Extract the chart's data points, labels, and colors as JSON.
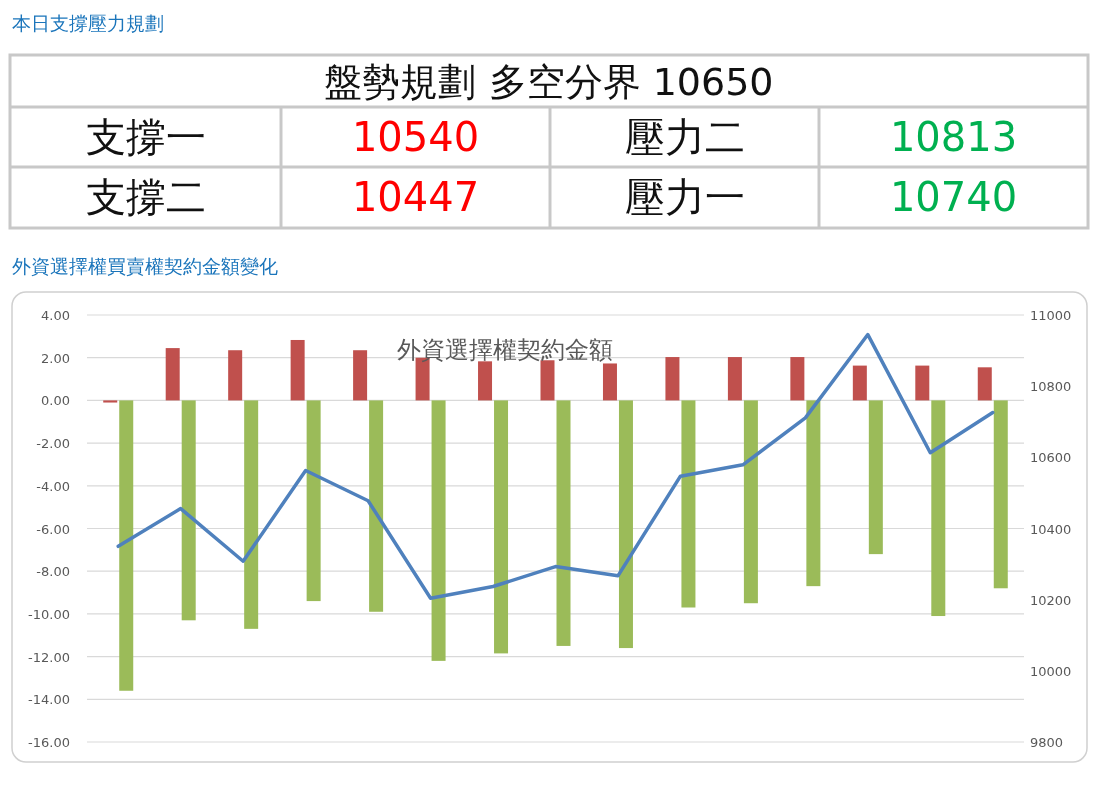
{
  "chart_data": [
    {
      "type": "other",
      "title": "本日支撐壓力規劃",
      "annotations": [
        "盤勢規劃 多空分界 10650",
        "支撐一",
        "10540",
        "壓力二",
        "10813",
        "支撐二",
        "10447",
        "壓力一",
        "10740"
      ]
    },
    {
      "type": "bar",
      "title": "外資選擇權買賣權契約金額變化",
      "subtitle": "外資選擇權契約金額",
      "categories": [
        null,
        null,
        null,
        null,
        null,
        null,
        null,
        null,
        null,
        null,
        null,
        null,
        null,
        null,
        null
      ],
      "series": [
        {
          "color": "#c0504d",
          "values": [
            -0.1,
            2.45,
            2.35,
            2.83,
            2.35,
            2.0,
            1.83,
            1.88,
            1.73,
            2.03,
            2.03,
            2.03,
            1.63,
            1.63,
            1.55
          ]
        },
        {
          "color": "#9bbb59",
          "values": [
            -13.6,
            -10.3,
            -10.7,
            -9.4,
            -9.9,
            -12.2,
            -11.85,
            -11.5,
            -11.6,
            -9.7,
            -9.5,
            -8.7,
            -7.2,
            -10.1,
            -8.8
          ]
        },
        {
          "type": "line",
          "axis": "y2",
          "color": "#4f81bd",
          "values": [
            10350,
            10456,
            10308,
            10563,
            10478,
            10204,
            10237,
            10293,
            10267,
            10547,
            10579,
            10711,
            10945,
            10613,
            10726
          ]
        }
      ],
      "ylim": [
        -16,
        4
      ],
      "yticks": [
        {
          "value": 4,
          "label": "4.00"
        },
        {
          "value": 2,
          "label": "2.00"
        },
        {
          "value": 0,
          "label": "0.00"
        },
        {
          "value": -2,
          "label": "-2.00"
        },
        {
          "value": -4,
          "label": "-4.00"
        },
        {
          "value": -6,
          "label": "-6.00"
        },
        {
          "value": -8,
          "label": "-8.00"
        },
        {
          "value": -10,
          "label": "-10.00"
        },
        {
          "value": -12,
          "label": "-12.00"
        },
        {
          "value": -14,
          "label": "-14.00"
        },
        {
          "value": -16,
          "label": "-16.00"
        }
      ],
      "y2lim": [
        9800,
        11000
      ],
      "y2ticks": [
        9800,
        10000,
        10200,
        10400,
        10600,
        10800,
        11000
      ],
      "grid": "y",
      "marker": "none",
      "line_style": "solid"
    }
  ]
}
